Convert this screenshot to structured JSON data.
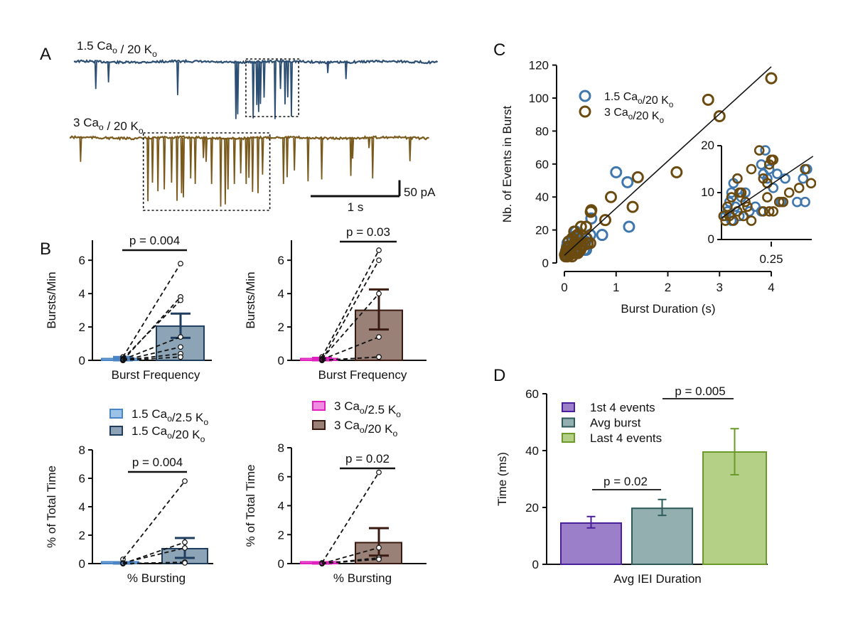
{
  "panel_labels": {
    "a": "A",
    "b": "B",
    "c": "C",
    "d": "D"
  },
  "colors": {
    "trace_low_ca": "#2b4e72",
    "trace_high_ca": "#7a5a1c",
    "scatter_low_ca": "#3f77ad",
    "scatter_high_ca": "#6b4a10"
  },
  "chart_data": [
    {
      "type": "line",
      "panel": "A",
      "traces": [
        {
          "label": "1.5 Cao / 20 Ko",
          "color": "#2b4e72",
          "duration_s": 4.0,
          "events_time_s_amp_pA": [
            [
              0.24,
              85
            ],
            [
              0.38,
              64
            ],
            [
              1.14,
              104
            ],
            [
              1.78,
              179
            ],
            [
              1.8,
              164
            ],
            [
              1.97,
              177
            ],
            [
              2.01,
              135
            ],
            [
              2.03,
              157
            ],
            [
              2.05,
              132
            ],
            [
              2.09,
              112
            ],
            [
              2.21,
              179
            ],
            [
              2.27,
              85
            ],
            [
              2.32,
              133
            ],
            [
              2.35,
              111
            ],
            [
              2.39,
              171
            ],
            [
              2.79,
              35
            ],
            [
              2.99,
              54
            ]
          ],
          "burst_box_s": [
            1.89,
            2.47
          ]
        },
        {
          "label": "3 Cao / 20 Ko",
          "color": "#7a5a1c",
          "duration_s": 3.96,
          "events_time_s_amp_pA": [
            [
              0.12,
              75
            ],
            [
              0.86,
              198
            ],
            [
              0.91,
              140
            ],
            [
              0.97,
              167
            ],
            [
              1.04,
              161
            ],
            [
              1.12,
              140
            ],
            [
              1.18,
              197
            ],
            [
              1.23,
              173
            ],
            [
              1.25,
              186
            ],
            [
              1.33,
              127
            ],
            [
              1.38,
              144
            ],
            [
              1.47,
              63
            ],
            [
              1.5,
              75
            ],
            [
              1.56,
              144
            ],
            [
              1.66,
              215
            ],
            [
              1.71,
              208
            ],
            [
              1.74,
              161
            ],
            [
              1.81,
              144
            ],
            [
              1.88,
              111
            ],
            [
              1.94,
              144
            ],
            [
              1.97,
              125
            ],
            [
              2.01,
              169
            ],
            [
              2.07,
              173
            ],
            [
              2.12,
              115
            ],
            [
              2.35,
              144
            ],
            [
              2.39,
              123
            ],
            [
              2.47,
              102
            ],
            [
              2.62,
              136
            ],
            [
              2.77,
              130
            ],
            [
              3.09,
              119
            ],
            [
              3.11,
              65
            ],
            [
              3.29,
              32
            ],
            [
              3.33,
              127
            ],
            [
              3.74,
              73
            ]
          ],
          "burst_box_s": [
            0.81,
            2.2
          ]
        }
      ],
      "scale_bar": {
        "time_label": "1 s",
        "current_label": "50 pA",
        "time_s": 1,
        "current_pA": 50
      }
    },
    {
      "type": "bar",
      "panel": "B",
      "xlabel": "Burst Frequency",
      "ylabel": "Bursts/Min",
      "ylim": [
        0,
        7.2
      ],
      "yticks": [
        0,
        2,
        4,
        6
      ],
      "categories": [
        "1.5 Cao/2.5 Ko",
        "1.5 Cao/20 Ko"
      ],
      "values": [
        0.05,
        2.05
      ],
      "error_low": [
        0.0,
        1.35
      ],
      "error_high": [
        0.2,
        2.8
      ],
      "paired_left": [
        0.2,
        0.0,
        0.1,
        0.05,
        0.0,
        0.0,
        0.0
      ],
      "paired_right": [
        5.8,
        3.8,
        3.6,
        1.4,
        0.8,
        0.4,
        0.2
      ],
      "fill_colors": [
        "#9cc2e8",
        "#8da4b6"
      ],
      "edge_colors": [
        "#4a86c6",
        "#1f3e5f"
      ],
      "annotation": "p = 0.004"
    },
    {
      "type": "bar",
      "panel": "B",
      "xlabel": "Burst Frequency",
      "ylabel": "Bursts/Min",
      "ylim": [
        0,
        7.2
      ],
      "yticks": [
        0,
        2,
        4,
        6
      ],
      "categories": [
        "3 Cao/2.5 Ko",
        "3 Cao/20 Ko"
      ],
      "values": [
        0.05,
        3.0
      ],
      "error_low": [
        0.0,
        1.85
      ],
      "error_high": [
        0.15,
        4.25
      ],
      "paired_left": [
        0.2,
        0.0,
        0.1,
        0.05,
        0.0,
        0.0
      ],
      "paired_right": [
        6.6,
        6.0,
        4.0,
        1.4,
        0.2,
        0.2
      ],
      "fill_colors": [
        "#f08de0",
        "#9a8178"
      ],
      "edge_colors": [
        "#e021c0",
        "#3a1a10"
      ],
      "annotation": "p = 0.03"
    },
    {
      "type": "bar",
      "panel": "B",
      "xlabel": "% Bursting",
      "ylabel": "% of Total Time",
      "ylim": [
        0,
        8
      ],
      "yticks": [
        0,
        2,
        4,
        6,
        8
      ],
      "categories": [
        "1.5 Cao/2.5 Ko",
        "1.5 Cao/20 Ko"
      ],
      "values": [
        0.02,
        1.05
      ],
      "error_low": [
        0.0,
        0.4
      ],
      "error_high": [
        0.1,
        1.8
      ],
      "paired_left": [
        0.3,
        0.0,
        0.05,
        0.0,
        0.0
      ],
      "paired_right": [
        5.8,
        1.5,
        1.1,
        0.1,
        0.05
      ],
      "fill_colors": [
        "#9cc2e8",
        "#8da4b6"
      ],
      "edge_colors": [
        "#4a86c6",
        "#1f3e5f"
      ],
      "annotation": "p = 0.004",
      "legend": [
        "1.5 Cao/2.5 Ko",
        "1.5 Cao/20 Ko"
      ]
    },
    {
      "type": "bar",
      "panel": "B",
      "xlabel": "% Bursting",
      "ylabel": "% of Total Time",
      "ylim": [
        0,
        8
      ],
      "yticks": [
        0,
        2,
        4,
        6,
        8
      ],
      "categories": [
        "3 Cao/2.5 Ko",
        "3 Cao/20 Ko"
      ],
      "values": [
        0.02,
        1.45
      ],
      "error_low": [
        0.0,
        0.55
      ],
      "error_high": [
        0.05,
        2.45
      ],
      "paired_left": [
        0.05,
        0.0,
        0.0,
        0.0
      ],
      "paired_right": [
        6.3,
        1.1,
        0.4,
        0.3
      ],
      "fill_colors": [
        "#f08de0",
        "#9a8178"
      ],
      "edge_colors": [
        "#e021c0",
        "#3a1a10"
      ],
      "annotation": "p = 0.02",
      "legend": [
        "3 Cao/2.5 Ko",
        "3 Cao/20 Ko"
      ]
    },
    {
      "type": "scatter",
      "panel": "C",
      "xlabel": "Burst Duration (s)",
      "ylabel": "Nb. of Events in Burst",
      "xlim": [
        0,
        4
      ],
      "ylim": [
        0,
        120
      ],
      "xticks": [
        0,
        1,
        2,
        3,
        4
      ],
      "yticks": [
        0,
        20,
        40,
        60,
        80,
        100,
        120
      ],
      "legend": [
        "1.5 Cao/20 Ko",
        "3 Cao/20 Ko"
      ],
      "fit": {
        "slope": 28.6,
        "intercept": 4.6
      },
      "series": [
        {
          "name": "1.5 Cao/20 Ko",
          "color": "#3f77ad",
          "points": [
            [
              1.0,
              55
            ],
            [
              1.22,
              49
            ],
            [
              1.25,
              22
            ],
            [
              0.73,
              17
            ],
            [
              0.52,
              27
            ],
            [
              0.5,
              17
            ],
            [
              0.42,
              8
            ],
            [
              0.22,
              19
            ],
            [
              0.2,
              16
            ],
            [
              0.24,
              15
            ],
            [
              0.21,
              14
            ],
            [
              0.28,
              14
            ],
            [
              0.23,
              13
            ],
            [
              0.32,
              13
            ],
            [
              0.41,
              13
            ],
            [
              0.43,
              15
            ],
            [
              0.26,
              11
            ],
            [
              0.38,
              8
            ],
            [
              0.3,
              8
            ],
            [
              0.12,
              10
            ],
            [
              0.08,
              13
            ],
            [
              0.06,
              12
            ],
            [
              0.05,
              10
            ],
            [
              0.1,
              9
            ],
            [
              0.04,
              8
            ],
            [
              0.03,
              6
            ],
            [
              0.07,
              7
            ],
            [
              0.14,
              6
            ],
            [
              0.17,
              7
            ],
            [
              0.02,
              5
            ],
            [
              0.05,
              4
            ],
            [
              0.09,
              5
            ],
            [
              0.2,
              6
            ]
          ]
        },
        {
          "name": "3 Cao/20 Ko",
          "color": "#6b4a10",
          "points": [
            [
              4.0,
              112
            ],
            [
              2.78,
              99
            ],
            [
              3.0,
              89
            ],
            [
              2.17,
              55
            ],
            [
              1.42,
              52
            ],
            [
              1.32,
              34
            ],
            [
              0.9,
              40
            ],
            [
              0.79,
              26
            ],
            [
              0.52,
              32
            ],
            [
              0.51,
              31
            ],
            [
              0.42,
              22
            ],
            [
              0.32,
              22
            ],
            [
              0.5,
              12
            ],
            [
              0.19,
              19
            ],
            [
              0.25,
              17
            ],
            [
              0.26,
              17
            ],
            [
              0.24,
              16
            ],
            [
              0.15,
              15
            ],
            [
              0.21,
              13
            ],
            [
              0.23,
              12
            ],
            [
              0.29,
              8
            ],
            [
              0.31,
              8
            ],
            [
              0.39,
              11
            ],
            [
              0.34,
              10
            ],
            [
              0.23,
              9
            ],
            [
              0.42,
              15
            ],
            [
              0.45,
              12
            ],
            [
              0.21,
              6
            ],
            [
              0.24,
              6
            ],
            [
              0.26,
              6
            ],
            [
              0.08,
              13
            ],
            [
              0.09,
              10
            ],
            [
              0.1,
              10
            ],
            [
              0.05,
              9
            ],
            [
              0.03,
              7
            ],
            [
              0.04,
              5
            ],
            [
              0.02,
              4
            ],
            [
              0.06,
              4
            ],
            [
              0.11,
              5
            ],
            [
              0.13,
              7
            ],
            [
              0.08,
              6
            ],
            [
              0.01,
              5
            ],
            [
              0.15,
              4
            ],
            [
              0.12,
              8
            ]
          ]
        }
      ],
      "inset": {
        "xlim": [
          0,
          0.45
        ],
        "ylim": [
          0,
          20
        ],
        "xticks": [
          0.25
        ],
        "yticks": [
          0,
          10,
          20
        ]
      }
    },
    {
      "type": "bar",
      "panel": "D",
      "xlabel": "Avg IEI Duration",
      "ylabel": "Time (ms)",
      "ylim": [
        0,
        60
      ],
      "yticks": [
        0,
        20,
        40,
        60
      ],
      "categories": [
        "1st 4 events",
        "Avg burst",
        "Last 4 events"
      ],
      "values": [
        14.5,
        19.7,
        39.5
      ],
      "error_low": [
        12.8,
        17.2,
        31.5
      ],
      "error_high": [
        16.8,
        22.8,
        47.7
      ],
      "fill_colors": [
        "#9b80c9",
        "#93afb0",
        "#b4cf86"
      ],
      "edge_colors": [
        "#4a1f9a",
        "#2e5a5a",
        "#6a9a2a"
      ],
      "annotations": [
        "p = 0.02",
        "p = 0.005"
      ]
    }
  ]
}
